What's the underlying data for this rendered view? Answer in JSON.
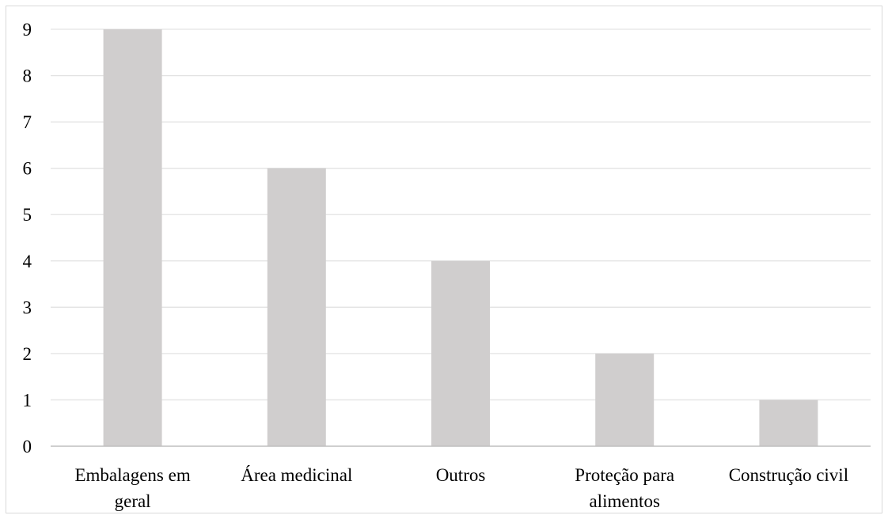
{
  "chart_data": {
    "type": "bar",
    "categories": [
      "Embalagens em geral",
      "Área medicinal",
      "Outros",
      "Proteção para alimentos",
      "Construção civil"
    ],
    "category_lines": [
      [
        "Embalagens em",
        "geral"
      ],
      [
        "Área medicinal"
      ],
      [
        "Outros"
      ],
      [
        "Proteção para",
        "alimentos"
      ],
      [
        "Construção civil"
      ]
    ],
    "values": [
      9,
      6,
      4,
      2,
      1
    ],
    "ylim": [
      0,
      9
    ],
    "yticks": [
      0,
      1,
      2,
      3,
      4,
      5,
      6,
      7,
      8,
      9
    ],
    "grid": true,
    "legend": "none",
    "title": "",
    "xlabel": "",
    "ylabel": "",
    "colors": {
      "bar": "#d0cece",
      "grid": "#e3e3e3",
      "axis": "#bfbfbf",
      "text": "#000000"
    }
  }
}
